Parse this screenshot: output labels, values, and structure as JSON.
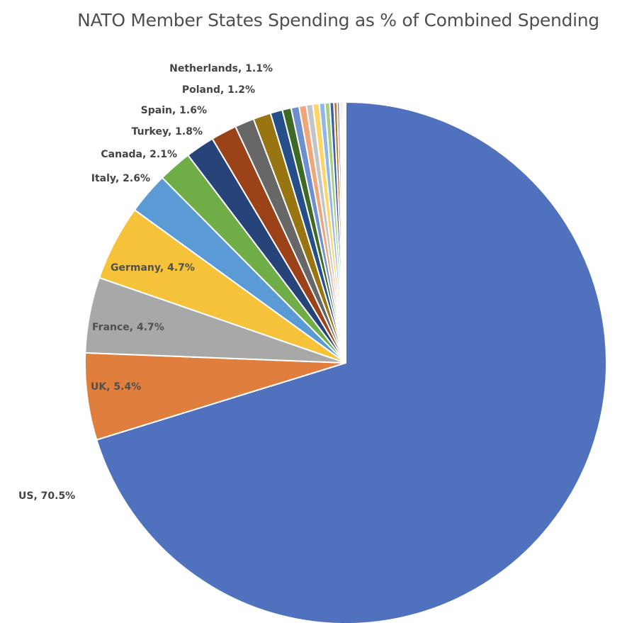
{
  "chart_data": {
    "type": "pie",
    "title": "NATO Member States Spending as % of Combined Spending",
    "slices": [
      {
        "label": "US, 70.5%",
        "name": "US",
        "value": 70.5,
        "color": "#4f71be"
      },
      {
        "label": "UK, 5.4%",
        "name": "UK",
        "value": 5.4,
        "color": "#e07f3d"
      },
      {
        "label": "France, 4.7%",
        "name": "France",
        "value": 4.7,
        "color": "#a8a8a8"
      },
      {
        "label": "Germany, 4.7%",
        "name": "Germany",
        "value": 4.7,
        "color": "#f5c23a"
      },
      {
        "label": "Italy, 2.6%",
        "name": "Italy",
        "value": 2.6,
        "color": "#5b9bd5"
      },
      {
        "label": "Canada, 2.1%",
        "name": "Canada",
        "value": 2.1,
        "color": "#6fad47"
      },
      {
        "label": "Turkey, 1.8%",
        "name": "Turkey",
        "value": 1.8,
        "color": "#26437a"
      },
      {
        "label": "Spain, 1.6%",
        "name": "Spain",
        "value": 1.6,
        "color": "#9b4218"
      },
      {
        "label": "Poland, 1.2%",
        "name": "Poland",
        "value": 1.2,
        "color": "#676767"
      },
      {
        "label": "Netherlands, 1.1%",
        "name": "Netherlands",
        "value": 1.1,
        "color": "#997512"
      },
      {
        "label": "",
        "name": "",
        "value": 0.75,
        "color": "#264f8a"
      },
      {
        "label": "",
        "name": "",
        "value": 0.55,
        "color": "#3d6b27"
      },
      {
        "label": "",
        "name": "",
        "value": 0.5,
        "color": "#6d8fd0"
      },
      {
        "label": "",
        "name": "",
        "value": 0.45,
        "color": "#f0a57a"
      },
      {
        "label": "",
        "name": "",
        "value": 0.4,
        "color": "#c4c4c4"
      },
      {
        "label": "",
        "name": "",
        "value": 0.4,
        "color": "#ffd665"
      },
      {
        "label": "",
        "name": "",
        "value": 0.35,
        "color": "#8fb6e6"
      },
      {
        "label": "",
        "name": "",
        "value": 0.3,
        "color": "#a6cc8a"
      },
      {
        "label": "",
        "name": "",
        "value": 0.25,
        "color": "#3a5fa0"
      },
      {
        "label": "",
        "name": "",
        "value": 0.2,
        "color": "#c06a2c"
      },
      {
        "label": "",
        "name": "",
        "value": 0.15,
        "color": "#8a8a8a"
      },
      {
        "label": "",
        "name": "",
        "value": 0.1,
        "color": "#c9a227"
      },
      {
        "label": "",
        "name": "",
        "value": 0.1,
        "color": "#4a86c6"
      },
      {
        "label": "",
        "name": "",
        "value": 0.08,
        "color": "#5a9a3a"
      },
      {
        "label": "",
        "name": "",
        "value": 0.06,
        "color": "#233f73"
      },
      {
        "label": "",
        "name": "",
        "value": 0.04,
        "color": "#8a3b17"
      }
    ]
  }
}
